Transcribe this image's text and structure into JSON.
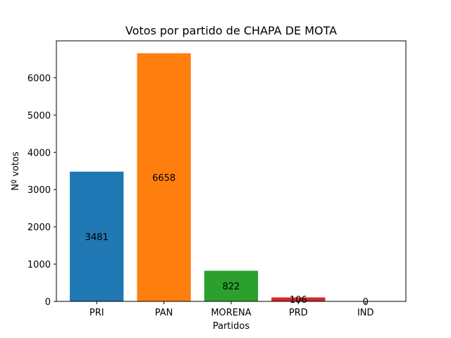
{
  "chart_data": {
    "type": "bar",
    "title": "Votos por partido de CHAPA DE MOTA",
    "xlabel": "Partidos",
    "ylabel": "Nº votos",
    "categories": [
      "PRI",
      "PAN",
      "MORENA",
      "PRD",
      "IND"
    ],
    "values": [
      3481,
      6658,
      822,
      106,
      0
    ],
    "colors": [
      "#1f77b4",
      "#ff7f0e",
      "#2ca02c",
      "#d62728",
      "#9467bd"
    ],
    "ylim": [
      0,
      6991
    ],
    "yticks": [
      0,
      1000,
      2000,
      3000,
      4000,
      5000,
      6000
    ],
    "grid": false,
    "legend": "none"
  }
}
